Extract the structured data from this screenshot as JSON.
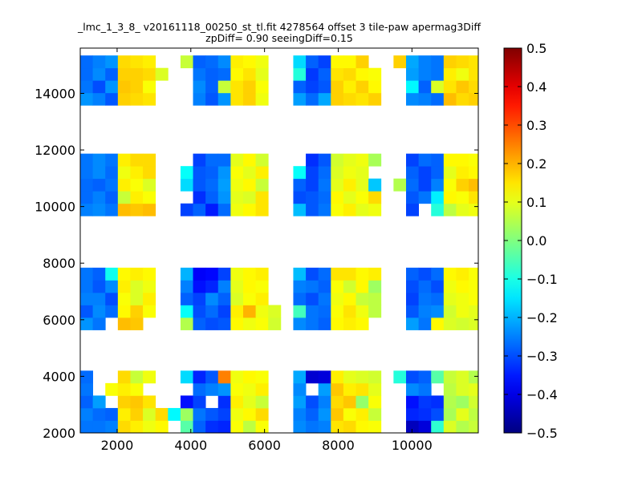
{
  "chart_data": {
    "type": "heatmap",
    "title_line1": "_lmc_1_3_8_ v20161118_00250_st_tl.fit 4278564 offset 3 tile-paw apermag3Diff",
    "title_line2": "zpDiff= 0.90 seeingDiff=0.15",
    "xlim": [
      1000,
      11800
    ],
    "ylim": [
      2000,
      15600
    ],
    "x_ticks": [
      2000,
      4000,
      6000,
      8000,
      10000
    ],
    "y_ticks": [
      2000,
      4000,
      6000,
      8000,
      10000,
      12000,
      14000
    ],
    "colorbar": {
      "colormap": "jet",
      "vmin": -0.5,
      "vmax": 0.5,
      "ticks": [
        "0.5",
        "0.4",
        "0.3",
        "0.2",
        "0.1",
        "0.0",
        "−0.1",
        "−0.2",
        "−0.3",
        "−0.4",
        "−0.5"
      ]
    },
    "grid": false,
    "cell_size": [
      340,
      440
    ],
    "x_columns": [
      1170,
      1510,
      1850,
      2190,
      2530,
      2870,
      3210,
      3550,
      3890,
      4230,
      4570,
      4910,
      5250,
      5590,
      5930,
      6270,
      6610,
      6950,
      7290,
      7630,
      7970,
      8310,
      8650,
      8990,
      9330,
      9670,
      10010,
      10350,
      10690,
      11030,
      11370,
      11710
    ],
    "y_rows": [
      2220,
      2660,
      3100,
      3540,
      3980,
      5860,
      6300,
      6740,
      7180,
      7620,
      9890,
      10330,
      10770,
      11210,
      11650,
      13800,
      14240,
      14680,
      15120
    ],
    "z_rows": [
      [
        -0.26,
        -0.26,
        -0.25,
        0.16,
        0.14,
        0.11,
        0.13,
        null,
        -0.04,
        -0.28,
        -0.33,
        -0.34,
        0.12,
        0.06,
        0.12,
        null,
        null,
        -0.24,
        -0.26,
        -0.25,
        0.15,
        0.16,
        0.13,
        0.12,
        null,
        null,
        -0.44,
        -0.41,
        -0.08,
        0.09,
        0.05,
        0.07
      ],
      [
        -0.25,
        -0.27,
        -0.28,
        0.14,
        0.17,
        0.09,
        0.16,
        -0.13,
        0.03,
        -0.26,
        -0.29,
        -0.31,
        0.11,
        0.13,
        0.16,
        null,
        null,
        -0.25,
        -0.28,
        -0.23,
        0.18,
        0.12,
        0.14,
        0.07,
        null,
        null,
        -0.34,
        -0.33,
        -0.3,
        0.04,
        0.1,
        0.06
      ],
      [
        -0.28,
        -0.22,
        null,
        0.17,
        0.18,
        0.15,
        null,
        null,
        -0.36,
        -0.31,
        null,
        -0.33,
        0.14,
        0.1,
        0.07,
        null,
        null,
        -0.22,
        -0.3,
        -0.25,
        0.16,
        0.18,
        0.02,
        0.12,
        null,
        null,
        -0.36,
        -0.32,
        -0.33,
        0.05,
        0.03,
        0.08
      ],
      [
        -0.26,
        null,
        0.12,
        0.14,
        0.12,
        null,
        null,
        null,
        null,
        -0.27,
        -0.25,
        -0.23,
        0.12,
        0.11,
        0.14,
        null,
        null,
        -0.24,
        null,
        -0.22,
        0.18,
        0.14,
        0.15,
        0.1,
        null,
        null,
        -0.24,
        -0.26,
        null,
        0.06,
        0.09,
        0.1
      ],
      [
        -0.27,
        null,
        null,
        0.16,
        0.07,
        0.11,
        null,
        null,
        -0.16,
        -0.34,
        -0.29,
        0.25,
        0.11,
        0.13,
        0.12,
        null,
        null,
        -0.21,
        -0.42,
        -0.41,
        0.14,
        0.1,
        0.09,
        0.08,
        null,
        -0.09,
        -0.3,
        -0.28,
        -0.04,
        0.07,
        0.09,
        0.05
      ],
      [
        -0.23,
        -0.26,
        null,
        0.19,
        0.18,
        null,
        null,
        null,
        0.05,
        -0.28,
        -0.3,
        -0.29,
        0.13,
        0.11,
        0.12,
        0.08,
        null,
        -0.24,
        -0.26,
        -0.28,
        0.13,
        0.14,
        0.13,
        null,
        null,
        null,
        -0.22,
        -0.26,
        0.13,
        0.09,
        0.08,
        0.09
      ],
      [
        -0.29,
        -0.24,
        -0.27,
        0.13,
        0.17,
        0.12,
        null,
        null,
        -0.12,
        -0.3,
        -0.27,
        -0.31,
        0.14,
        0.2,
        0.11,
        0.09,
        null,
        -0.06,
        -0.26,
        -0.27,
        0.12,
        0.15,
        0.11,
        0.06,
        null,
        null,
        -0.29,
        -0.25,
        -0.24,
        0.08,
        0.11,
        0.1
      ],
      [
        -0.25,
        -0.25,
        -0.3,
        0.12,
        0.09,
        0.14,
        null,
        null,
        -0.28,
        -0.31,
        -0.24,
        -0.28,
        0.09,
        0.12,
        0.14,
        null,
        null,
        -0.27,
        -0.3,
        -0.26,
        0.11,
        0.13,
        0.07,
        0.06,
        null,
        null,
        -0.31,
        -0.26,
        -0.27,
        0.1,
        0.11,
        0.12
      ],
      [
        -0.26,
        -0.29,
        -0.24,
        0.14,
        0.09,
        0.11,
        null,
        null,
        -0.25,
        -0.36,
        -0.34,
        -0.25,
        0.1,
        0.13,
        0.12,
        null,
        null,
        -0.25,
        -0.26,
        -0.28,
        0.12,
        0.08,
        0.13,
        0.03,
        null,
        null,
        -0.3,
        -0.27,
        -0.3,
        0.11,
        0.13,
        0.12
      ],
      [
        -0.26,
        -0.28,
        -0.11,
        0.13,
        0.14,
        0.13,
        null,
        null,
        -0.2,
        -0.38,
        -0.37,
        -0.31,
        0.11,
        0.13,
        0.14,
        null,
        null,
        -0.19,
        -0.3,
        -0.27,
        0.15,
        0.15,
        0.13,
        0.14,
        null,
        null,
        -0.28,
        -0.3,
        -0.27,
        0.13,
        0.14,
        0.12
      ],
      [
        -0.25,
        -0.24,
        -0.26,
        0.19,
        0.18,
        0.19,
        null,
        null,
        -0.31,
        -0.28,
        -0.35,
        -0.27,
        0.11,
        0.13,
        0.15,
        null,
        null,
        -0.19,
        -0.29,
        -0.26,
        0.12,
        0.14,
        0.1,
        0.11,
        null,
        null,
        -0.31,
        null,
        -0.09,
        0.06,
        0.1,
        0.11
      ],
      [
        -0.27,
        -0.25,
        -0.28,
        0.07,
        0.14,
        0.12,
        null,
        null,
        null,
        -0.33,
        -0.28,
        -0.23,
        0.1,
        0.09,
        0.15,
        null,
        null,
        -0.3,
        -0.29,
        -0.27,
        0.13,
        0.1,
        0.12,
        0.16,
        null,
        null,
        -0.29,
        -0.26,
        -0.14,
        0.13,
        0.12,
        0.15
      ],
      [
        -0.27,
        -0.28,
        -0.26,
        0.14,
        0.12,
        0.09,
        null,
        null,
        -0.16,
        -0.29,
        -0.27,
        -0.22,
        0.11,
        0.13,
        0.07,
        null,
        null,
        -0.28,
        -0.31,
        -0.26,
        0.1,
        0.14,
        0.1,
        -0.18,
        null,
        0.05,
        -0.27,
        -0.31,
        -0.25,
        0.12,
        0.17,
        0.19
      ],
      [
        -0.26,
        -0.24,
        -0.27,
        0.11,
        0.14,
        0.16,
        null,
        null,
        -0.12,
        -0.29,
        -0.28,
        -0.23,
        0.12,
        0.1,
        0.14,
        null,
        null,
        -0.12,
        -0.31,
        -0.27,
        0.09,
        0.11,
        0.1,
        null,
        null,
        null,
        -0.28,
        -0.31,
        -0.28,
        0.1,
        0.14,
        0.13
      ],
      [
        -0.26,
        -0.24,
        -0.26,
        0.14,
        0.16,
        0.16,
        null,
        null,
        null,
        -0.31,
        -0.27,
        -0.27,
        0.1,
        0.13,
        0.08,
        null,
        null,
        null,
        -0.33,
        -0.29,
        0.08,
        0.1,
        0.11,
        0.04,
        null,
        null,
        -0.31,
        -0.27,
        -0.28,
        0.13,
        0.13,
        0.12
      ],
      [
        -0.23,
        -0.25,
        -0.29,
        0.17,
        0.16,
        0.15,
        null,
        null,
        null,
        -0.25,
        -0.29,
        -0.23,
        0.15,
        0.17,
        0.11,
        null,
        null,
        -0.22,
        -0.27,
        -0.21,
        0.17,
        0.16,
        0.15,
        0.17,
        null,
        null,
        -0.24,
        -0.25,
        -0.27,
        0.19,
        0.16,
        0.17
      ],
      [
        -0.26,
        -0.3,
        -0.23,
        0.18,
        0.17,
        0.12,
        null,
        null,
        null,
        -0.24,
        -0.28,
        0.07,
        0.15,
        0.17,
        0.12,
        null,
        null,
        -0.28,
        -0.31,
        -0.29,
        0.17,
        0.14,
        0.17,
        0.13,
        null,
        null,
        -0.13,
        -0.28,
        0.09,
        0.15,
        0.18,
        0.16
      ],
      [
        -0.27,
        -0.24,
        -0.28,
        0.17,
        0.17,
        0.16,
        0.09,
        null,
        null,
        -0.26,
        -0.28,
        -0.27,
        0.13,
        0.15,
        0.1,
        null,
        null,
        -0.09,
        -0.32,
        -0.28,
        0.15,
        0.16,
        0.13,
        0.12,
        null,
        null,
        -0.22,
        -0.25,
        -0.26,
        0.14,
        0.11,
        0.15
      ],
      [
        -0.27,
        -0.25,
        -0.23,
        0.16,
        0.15,
        0.14,
        null,
        null,
        0.07,
        -0.28,
        -0.27,
        -0.24,
        0.14,
        0.13,
        0.11,
        null,
        null,
        -0.16,
        -0.28,
        -0.31,
        0.13,
        0.13,
        0.17,
        null,
        null,
        0.17,
        -0.21,
        -0.25,
        -0.26,
        0.17,
        0.16,
        0.15
      ]
    ]
  }
}
